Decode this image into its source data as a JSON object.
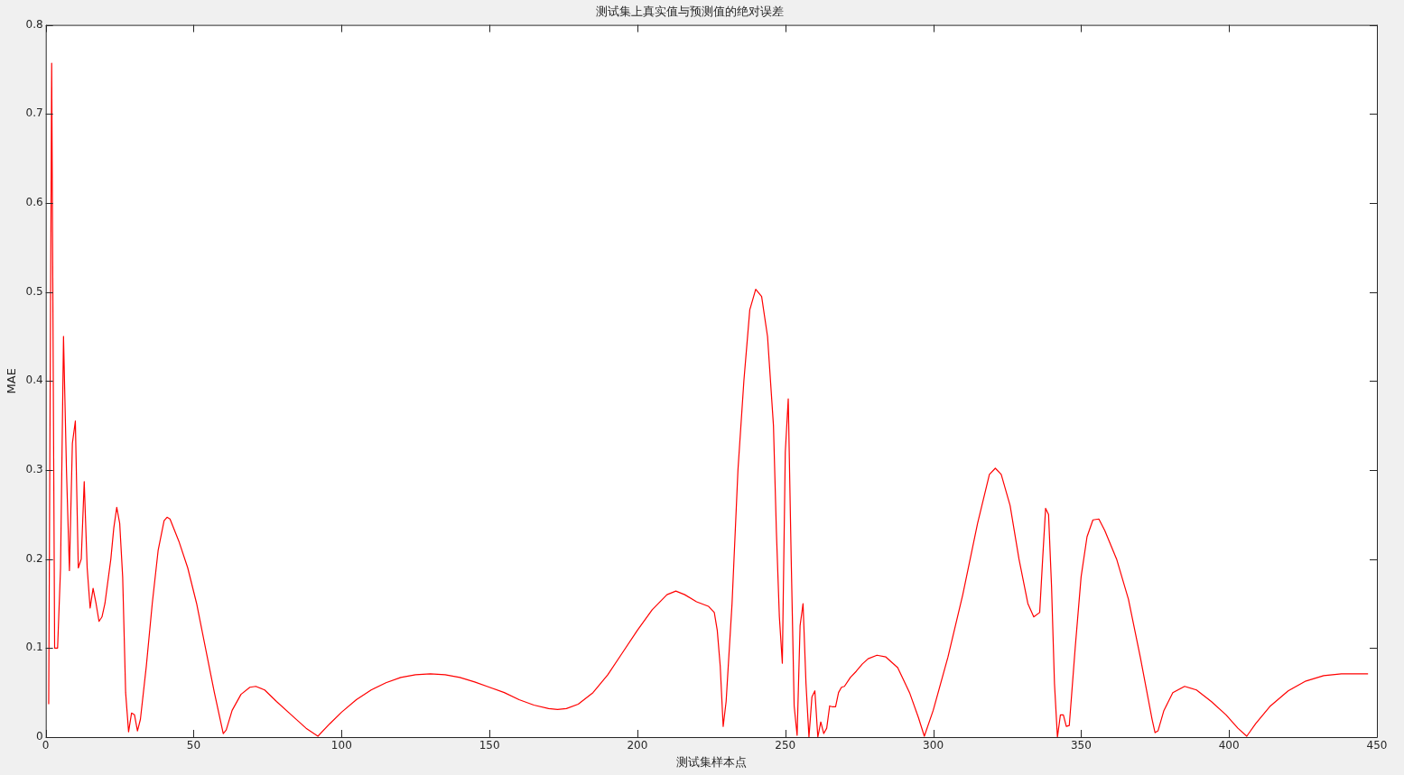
{
  "chart_data": {
    "type": "line",
    "title": "测试集上真实值与预测值的绝对误差",
    "xlabel": "测试集样本点",
    "ylabel": "MAE",
    "x": [
      1,
      2,
      3,
      4,
      5,
      6,
      7,
      8,
      9,
      10,
      11,
      12,
      13,
      14,
      15,
      16,
      17,
      18,
      19,
      20,
      22,
      23,
      24,
      25,
      26,
      27,
      28,
      29,
      30,
      31,
      32,
      34,
      36,
      38,
      40,
      41,
      42,
      45,
      48,
      51,
      54,
      57,
      60,
      61,
      63,
      66,
      69,
      71,
      74,
      78,
      83,
      88,
      92,
      96,
      100,
      105,
      110,
      115,
      120,
      125,
      130,
      135,
      140,
      145,
      150,
      155,
      160,
      165,
      170,
      173,
      176,
      180,
      185,
      190,
      195,
      200,
      205,
      210,
      213,
      216,
      220,
      224,
      226,
      227,
      228,
      229,
      230,
      232,
      234,
      236,
      238,
      240,
      242,
      244,
      246,
      247,
      248,
      249,
      250,
      251,
      252,
      253,
      254,
      255,
      256,
      257,
      258,
      259,
      260,
      261,
      262,
      263,
      264,
      265,
      266,
      267,
      268,
      269,
      270,
      272,
      274,
      276,
      278,
      281,
      284,
      288,
      292,
      295,
      297,
      300,
      305,
      310,
      315,
      319,
      321,
      323,
      326,
      329,
      332,
      334,
      336,
      337,
      338,
      339,
      340,
      341,
      342,
      343,
      344,
      345,
      346,
      348,
      350,
      352,
      354,
      356,
      358,
      362,
      366,
      370,
      374,
      375,
      376,
      378,
      381,
      385,
      389,
      394,
      399,
      403,
      406,
      409,
      414,
      420,
      426,
      432,
      438,
      447
    ],
    "series": [
      {
        "color": "#ff0000",
        "values": [
          0.037,
          0.757,
          0.1,
          0.1,
          0.19,
          0.45,
          0.3,
          0.187,
          0.33,
          0.355,
          0.19,
          0.2,
          0.287,
          0.19,
          0.145,
          0.167,
          0.15,
          0.13,
          0.135,
          0.15,
          0.2,
          0.235,
          0.258,
          0.24,
          0.18,
          0.05,
          0.006,
          0.027,
          0.025,
          0.007,
          0.02,
          0.08,
          0.15,
          0.21,
          0.243,
          0.247,
          0.245,
          0.22,
          0.19,
          0.15,
          0.1,
          0.05,
          0.004,
          0.008,
          0.03,
          0.048,
          0.056,
          0.057,
          0.053,
          0.04,
          0.025,
          0.01,
          0.001,
          0.015,
          0.028,
          0.042,
          0.053,
          0.061,
          0.067,
          0.07,
          0.071,
          0.07,
          0.067,
          0.062,
          0.056,
          0.05,
          0.042,
          0.036,
          0.032,
          0.031,
          0.032,
          0.037,
          0.05,
          0.07,
          0.095,
          0.12,
          0.143,
          0.16,
          0.164,
          0.16,
          0.152,
          0.147,
          0.14,
          0.12,
          0.08,
          0.012,
          0.04,
          0.15,
          0.3,
          0.4,
          0.48,
          0.503,
          0.495,
          0.45,
          0.35,
          0.23,
          0.135,
          0.083,
          0.32,
          0.38,
          0.2,
          0.035,
          0.002,
          0.125,
          0.15,
          0.06,
          0.0,
          0.045,
          0.052,
          0.0,
          0.017,
          0.004,
          0.01,
          0.035,
          0.034,
          0.034,
          0.05,
          0.056,
          0.057,
          0.067,
          0.074,
          0.082,
          0.088,
          0.092,
          0.09,
          0.078,
          0.05,
          0.022,
          0.001,
          0.03,
          0.09,
          0.16,
          0.24,
          0.295,
          0.302,
          0.295,
          0.26,
          0.2,
          0.15,
          0.135,
          0.14,
          0.2,
          0.257,
          0.25,
          0.17,
          0.06,
          0.0,
          0.025,
          0.025,
          0.012,
          0.013,
          0.1,
          0.18,
          0.225,
          0.244,
          0.245,
          0.232,
          0.2,
          0.155,
          0.09,
          0.02,
          0.005,
          0.007,
          0.03,
          0.05,
          0.057,
          0.053,
          0.04,
          0.025,
          0.01,
          0.001,
          0.015,
          0.035,
          0.052,
          0.063,
          0.069,
          0.071,
          0.071
        ]
      }
    ],
    "xlim": [
      0,
      450
    ],
    "xticks": [
      0,
      50,
      100,
      150,
      200,
      250,
      300,
      350,
      400,
      450
    ],
    "ylim": [
      0,
      0.8
    ],
    "yticks": [
      0,
      0.1,
      0.2,
      0.3,
      0.4,
      0.5,
      0.6,
      0.7,
      0.8
    ],
    "grid": false,
    "legend": false,
    "marker": "none",
    "line_style": "solid"
  }
}
